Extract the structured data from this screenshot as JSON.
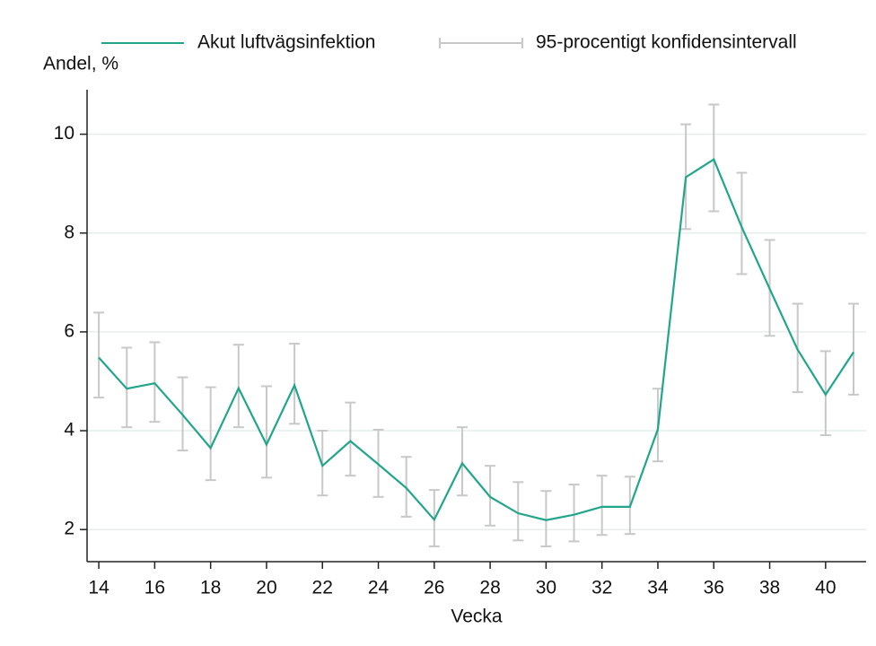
{
  "chart_data": {
    "type": "line",
    "y_label": "Andel, %",
    "x_label": "Vecka",
    "x": [
      14,
      15,
      16,
      17,
      18,
      19,
      20,
      21,
      22,
      23,
      24,
      25,
      26,
      27,
      28,
      29,
      30,
      31,
      32,
      33,
      34,
      35,
      36,
      37,
      38,
      39,
      40,
      41
    ],
    "series": [
      {
        "name": "Akut luftvägsinfektion",
        "color": "#21a58b",
        "values": [
          5.48,
          4.85,
          4.96,
          4.32,
          3.65,
          4.86,
          3.72,
          4.92,
          3.29,
          3.79,
          3.32,
          2.84,
          2.2,
          3.34,
          2.66,
          2.33,
          2.19,
          2.3,
          2.46,
          2.46,
          4.03,
          9.13,
          9.49,
          8.12,
          6.87,
          5.64,
          4.73,
          5.59
        ]
      }
    ],
    "confidence_interval": {
      "name": "95-procentigt konfidensintervall",
      "color": "#c8c8c8",
      "lower": [
        4.67,
        4.07,
        4.18,
        3.6,
        3.0,
        4.07,
        3.05,
        4.14,
        2.69,
        3.09,
        2.66,
        2.26,
        1.66,
        2.69,
        2.08,
        1.78,
        1.66,
        1.76,
        1.89,
        1.91,
        3.38,
        8.08,
        8.44,
        7.17,
        5.92,
        4.78,
        3.91,
        4.73
      ],
      "upper": [
        6.39,
        5.68,
        5.79,
        5.08,
        4.88,
        5.74,
        4.9,
        5.76,
        4.0,
        4.57,
        4.02,
        3.47,
        2.8,
        4.07,
        3.29,
        2.96,
        2.78,
        2.91,
        3.09,
        3.07,
        4.85,
        10.2,
        10.6,
        9.22,
        7.86,
        6.57,
        5.61,
        6.57
      ]
    },
    "xlim": [
      13.58,
      41.45
    ],
    "ylim": [
      1.35,
      10.9
    ],
    "xticks": [
      14,
      16,
      18,
      20,
      22,
      24,
      26,
      28,
      30,
      32,
      34,
      36,
      38,
      40
    ],
    "yticks": [
      2,
      4,
      6,
      8,
      10
    ],
    "grid": true
  }
}
